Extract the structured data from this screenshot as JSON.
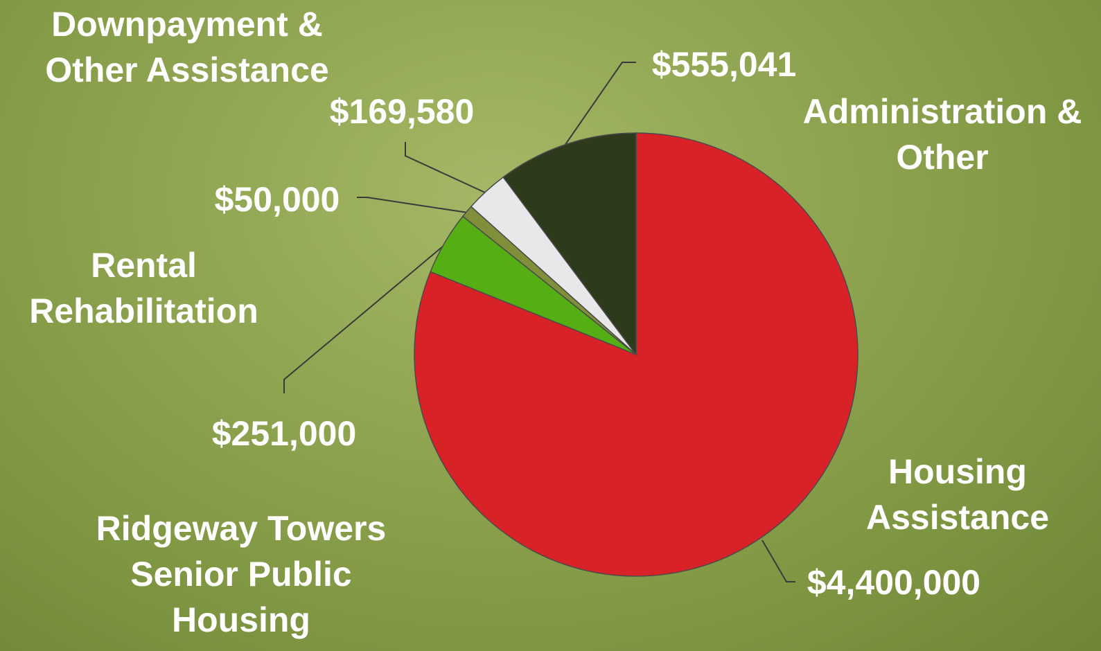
{
  "chart_data": {
    "type": "pie",
    "categories": [
      "Housing Assistance",
      "Ridgeway Towers Senior Public Housing",
      "Rental Rehabilitation",
      "Downpayment & Other Assistance",
      "Administration & Other"
    ],
    "values": [
      4400000,
      251000,
      50000,
      169580,
      555041
    ],
    "value_labels": [
      "$4,400,000",
      "$251,000",
      "$50,000",
      "$169,580",
      "$555,041"
    ],
    "colors": [
      "#d92128",
      "#55ae14",
      "#7f8f3a",
      "#e8e8ea",
      "#2e3a1c"
    ]
  }
}
